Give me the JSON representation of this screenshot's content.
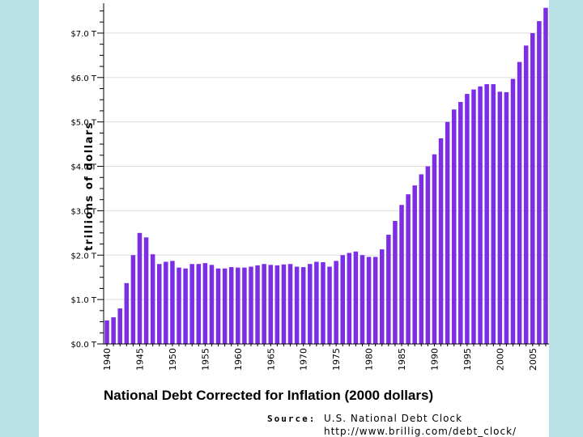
{
  "colors": {
    "background": "#b9e0e4",
    "panel": "#ffffff",
    "bar": "#7b2ee6",
    "grid": "#dddddd"
  },
  "chart_data": {
    "type": "bar",
    "title": "National Debt Corrected for Inflation (2000 dollars)",
    "xlabel": "",
    "ylabel": "trillions of dollars",
    "ylim": [
      0,
      7.6
    ],
    "y_ticks": [
      0,
      1,
      2,
      3,
      4,
      5,
      6,
      7
    ],
    "y_tick_labels": [
      "$0.0 T",
      "$1.0 T",
      "$2.0 T",
      "$3.0 T",
      "$4.0 T",
      "$5.0 T",
      "$6.0 T",
      "$7.0 T"
    ],
    "x_tick_labels": [
      "1940",
      "1945",
      "1950",
      "1955",
      "1960",
      "1965",
      "1970",
      "1975",
      "1980",
      "1985",
      "1990",
      "1995",
      "2000",
      "2005"
    ],
    "grid": true,
    "categories": [
      1940,
      1941,
      1942,
      1943,
      1944,
      1945,
      1946,
      1947,
      1948,
      1949,
      1950,
      1951,
      1952,
      1953,
      1954,
      1955,
      1956,
      1957,
      1958,
      1959,
      1960,
      1961,
      1962,
      1963,
      1964,
      1965,
      1966,
      1967,
      1968,
      1969,
      1970,
      1971,
      1972,
      1973,
      1974,
      1975,
      1976,
      1977,
      1978,
      1979,
      1980,
      1981,
      1982,
      1983,
      1984,
      1985,
      1986,
      1987,
      1988,
      1989,
      1990,
      1991,
      1992,
      1993,
      1994,
      1995,
      1996,
      1997,
      1998,
      1999,
      2000,
      2001,
      2002,
      2003,
      2004,
      2005,
      2006,
      2007
    ],
    "values": [
      0.53,
      0.6,
      0.8,
      1.37,
      2.0,
      2.5,
      2.4,
      2.02,
      1.8,
      1.85,
      1.87,
      1.72,
      1.7,
      1.8,
      1.8,
      1.82,
      1.78,
      1.7,
      1.7,
      1.73,
      1.72,
      1.72,
      1.74,
      1.77,
      1.8,
      1.78,
      1.77,
      1.79,
      1.8,
      1.74,
      1.73,
      1.8,
      1.85,
      1.84,
      1.74,
      1.87,
      2.0,
      2.05,
      2.08,
      2.0,
      1.96,
      1.96,
      2.13,
      2.46,
      2.77,
      3.13,
      3.37,
      3.57,
      3.82,
      4.0,
      4.27,
      4.63,
      5.0,
      5.28,
      5.45,
      5.63,
      5.73,
      5.8,
      5.85,
      5.85,
      5.68,
      5.67,
      5.97,
      6.35,
      6.72,
      7.0,
      7.27,
      7.57
    ]
  },
  "source": {
    "label": "Source:",
    "text": "U.S. National Debt Clock",
    "url": "http://www.brillig.com/debt_clock/"
  }
}
